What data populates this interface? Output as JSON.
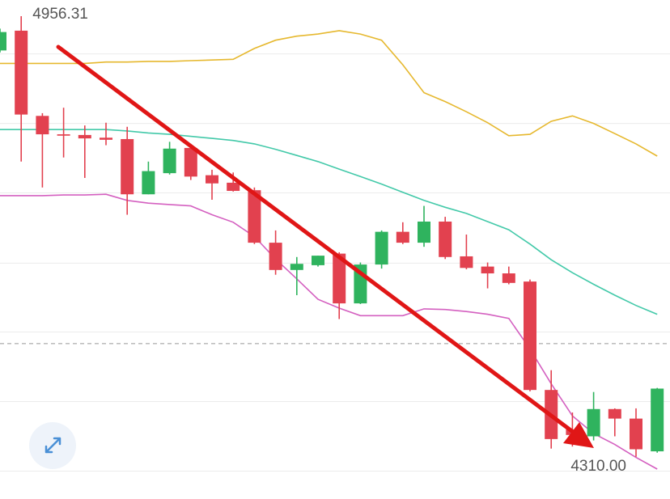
{
  "chart_data": {
    "type": "candlestick",
    "ylim": [
      4254,
      4980
    ],
    "grid_values": [
      4901,
      4799,
      4697,
      4594,
      4493,
      4391,
      4289
    ],
    "reference_line": 4476,
    "up_color": "#2fb35e",
    "down_color": "#e2414f",
    "max_label": 4956.31,
    "min_label": {
      "value": 4310,
      "label": "4310.00"
    },
    "candles": [
      {
        "open": 4906,
        "high": 4938,
        "low": 4903,
        "close": 4933
      },
      {
        "open": 4935,
        "high": 4956.31,
        "low": 4743,
        "close": 4812
      },
      {
        "open": 4810,
        "high": 4814,
        "low": 4705,
        "close": 4783
      },
      {
        "open": 4783,
        "high": 4822,
        "low": 4749,
        "close": 4781
      },
      {
        "open": 4782,
        "high": 4796,
        "low": 4719,
        "close": 4777
      },
      {
        "open": 4778,
        "high": 4800,
        "low": 4767,
        "close": 4775
      },
      {
        "open": 4776,
        "high": 4794,
        "low": 4665,
        "close": 4695
      },
      {
        "open": 4695,
        "high": 4743,
        "low": 4695,
        "close": 4729
      },
      {
        "open": 4726,
        "high": 4772,
        "low": 4724,
        "close": 4762
      },
      {
        "open": 4763,
        "high": 4769,
        "low": 4716,
        "close": 4721
      },
      {
        "open": 4723,
        "high": 4731,
        "low": 4687,
        "close": 4711
      },
      {
        "open": 4712,
        "high": 4727,
        "low": 4699,
        "close": 4700
      },
      {
        "open": 4701,
        "high": 4705,
        "low": 4622,
        "close": 4624
      },
      {
        "open": 4624,
        "high": 4642,
        "low": 4577,
        "close": 4584
      },
      {
        "open": 4584,
        "high": 4603,
        "low": 4547,
        "close": 4593
      },
      {
        "open": 4591,
        "high": 4605,
        "low": 4589,
        "close": 4605
      },
      {
        "open": 4608,
        "high": 4610,
        "low": 4512,
        "close": 4535
      },
      {
        "open": 4535,
        "high": 4595,
        "low": 4534,
        "close": 4592
      },
      {
        "open": 4592,
        "high": 4642,
        "low": 4586,
        "close": 4640
      },
      {
        "open": 4640,
        "high": 4654,
        "low": 4622,
        "close": 4624
      },
      {
        "open": 4624,
        "high": 4678,
        "low": 4618,
        "close": 4655
      },
      {
        "open": 4655,
        "high": 4662,
        "low": 4600,
        "close": 4603
      },
      {
        "open": 4604,
        "high": 4636,
        "low": 4585,
        "close": 4587
      },
      {
        "open": 4589,
        "high": 4595,
        "low": 4557,
        "close": 4579
      },
      {
        "open": 4579,
        "high": 4589,
        "low": 4563,
        "close": 4565
      },
      {
        "open": 4567,
        "high": 4570,
        "low": 4406,
        "close": 4408
      },
      {
        "open": 4408,
        "high": 4437,
        "low": 4322,
        "close": 4336
      },
      {
        "open": 4350,
        "high": 4375,
        "low": 4325,
        "close": 4342
      },
      {
        "open": 4340,
        "high": 4405,
        "low": 4334,
        "close": 4380
      },
      {
        "open": 4380,
        "high": 4381,
        "low": 4340,
        "close": 4366
      },
      {
        "open": 4366,
        "high": 4381,
        "low": 4310,
        "close": 4321
      },
      {
        "open": 4318,
        "high": 4411,
        "low": 4316,
        "close": 4410
      }
    ],
    "bands": [
      {
        "color": "#e6b82e",
        "values": [
          4887,
          4887,
          4887,
          4887,
          4887,
          4889,
          4889,
          4890,
          4890,
          4891,
          4892,
          4893,
          4909,
          4921,
          4927,
          4930,
          4935,
          4930,
          4921,
          4885,
          4844,
          4831,
          4816,
          4800,
          4781,
          4783,
          4802,
          4810,
          4799,
          4784,
          4769,
          4751
        ]
      },
      {
        "color": "#43c9a9",
        "values": [
          4790,
          4790,
          4790,
          4790,
          4790,
          4790,
          4788,
          4785,
          4783,
          4780,
          4777,
          4774,
          4769,
          4761,
          4752,
          4743,
          4732,
          4721,
          4710,
          4698,
          4686,
          4676,
          4667,
          4655,
          4643,
          4622,
          4599,
          4580,
          4563,
          4547,
          4532,
          4519
        ]
      },
      {
        "color": "#d460c0",
        "values": [
          4693,
          4693,
          4693,
          4694,
          4694,
          4695,
          4686,
          4682,
          4680,
          4678,
          4665,
          4654,
          4633,
          4600,
          4571,
          4541,
          4528,
          4517,
          4517,
          4517,
          4527,
          4526,
          4523,
          4519,
          4513,
          4468,
          4417,
          4370,
          4344,
          4328,
          4309,
          4292
        ]
      }
    ]
  }
}
